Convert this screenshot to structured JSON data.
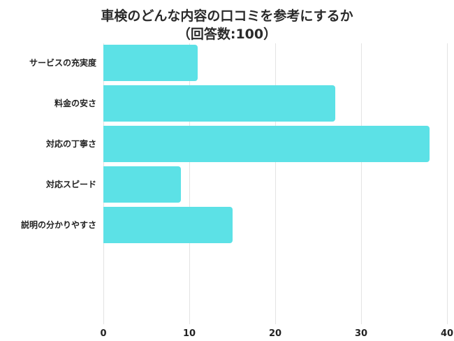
{
  "chart_data": {
    "type": "bar",
    "orientation": "horizontal",
    "title": "車検のどんな内容の口コミを参考にするか",
    "subtitle": "（回答数:100）",
    "categories": [
      "サービスの充実度",
      "料金の安さ",
      "対応の丁寧さ",
      "対応スピード",
      "説明の分かりやすさ"
    ],
    "values": [
      11,
      27,
      38,
      9,
      15
    ],
    "xlabel": "",
    "ylabel": "",
    "xlim": [
      0,
      40
    ],
    "xticks": [
      "0",
      "10",
      "20",
      "30",
      "40"
    ],
    "grid": true,
    "legend": null,
    "bar_color": "#5ce1e6"
  }
}
